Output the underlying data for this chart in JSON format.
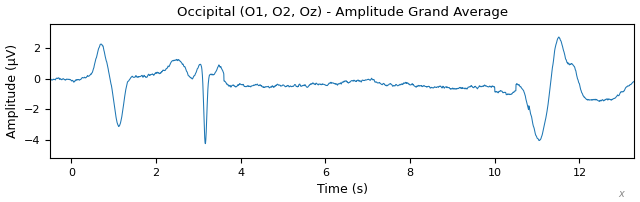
{
  "title": "Occipital (O1, O2, Oz) - Amplitude Grand Average",
  "xlabel": "Time (s)",
  "ylabel": "Amplitude (μV)",
  "line_color": "#1f77b4",
  "xlim": [
    -0.5,
    13.3
  ],
  "ylim": [
    -5.2,
    3.6
  ],
  "xticks": [
    0,
    2,
    4,
    6,
    8,
    10,
    12
  ],
  "figsize": [
    6.4,
    2.02
  ],
  "dpi": 100,
  "seed": 17,
  "noise_amp": 0.2,
  "noise_sigma": 1.5
}
